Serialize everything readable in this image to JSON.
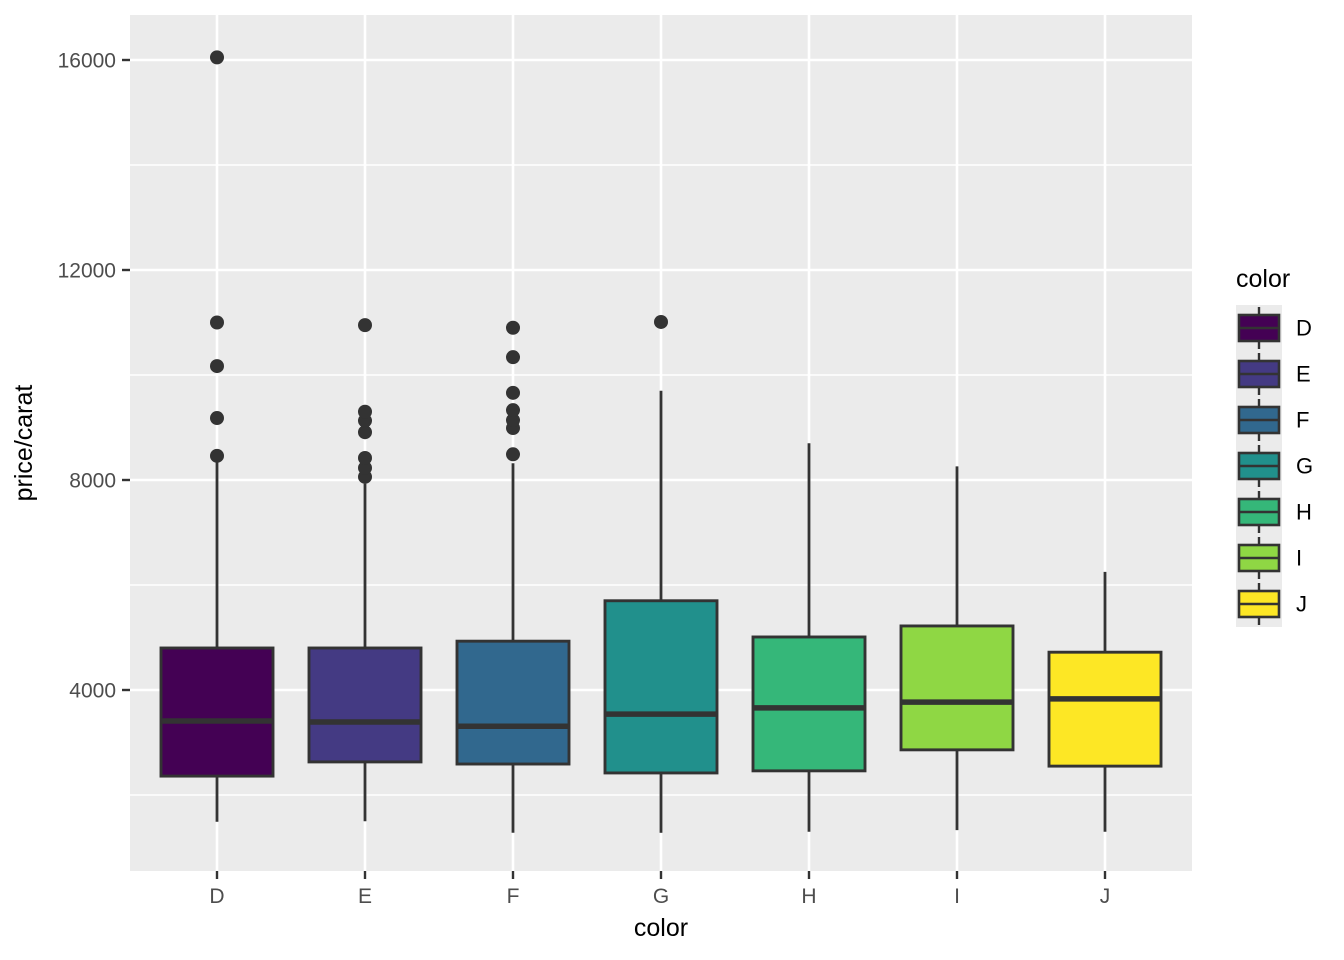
{
  "chart_data": {
    "type": "boxplot",
    "title": "",
    "xlabel": "color",
    "ylabel": "price/carat",
    "categories": [
      "D",
      "E",
      "F",
      "G",
      "H",
      "I",
      "J"
    ],
    "series": [
      {
        "name": "D",
        "color": "#440154",
        "whisker_low": 1490,
        "q1": 2360,
        "median": 3410,
        "q3": 4800,
        "whisker_high": 8380,
        "outliers": [
          8460,
          9180,
          10170,
          11000,
          16050
        ]
      },
      {
        "name": "E",
        "color": "#443A83",
        "whisker_low": 1500,
        "q1": 2630,
        "median": 3390,
        "q3": 4800,
        "whisker_high": 7930,
        "outliers": [
          8060,
          8230,
          8420,
          8910,
          9130,
          9300,
          10950
        ]
      },
      {
        "name": "F",
        "color": "#31688E",
        "whisker_low": 1280,
        "q1": 2590,
        "median": 3310,
        "q3": 4930,
        "whisker_high": 8320,
        "outliers": [
          8490,
          8990,
          9140,
          9330,
          9660,
          10340,
          10900
        ]
      },
      {
        "name": "G",
        "color": "#21908C",
        "whisker_low": 1280,
        "q1": 2420,
        "median": 3540,
        "q3": 5700,
        "whisker_high": 9700,
        "outliers": [
          11010
        ]
      },
      {
        "name": "H",
        "color": "#35B779",
        "whisker_low": 1300,
        "q1": 2460,
        "median": 3660,
        "q3": 5010,
        "whisker_high": 8700,
        "outliers": []
      },
      {
        "name": "I",
        "color": "#8FD744",
        "whisker_low": 1330,
        "q1": 2860,
        "median": 3770,
        "q3": 5220,
        "whisker_high": 8260,
        "outliers": []
      },
      {
        "name": "J",
        "color": "#FDE725",
        "whisker_low": 1300,
        "q1": 2550,
        "median": 3830,
        "q3": 4720,
        "whisker_high": 6250,
        "outliers": []
      }
    ],
    "y_axis": {
      "tick_labels": [
        "4000",
        "8000",
        "12000",
        "16000"
      ],
      "ticks": [
        4000,
        8000,
        12000,
        16000
      ],
      "minor_ticks": [
        2000,
        6000,
        10000,
        14000
      ],
      "range": [
        550,
        16860
      ],
      "grid": true
    },
    "legend": {
      "title": "color",
      "position": "right",
      "entries": [
        {
          "label": "D",
          "color": "#440154"
        },
        {
          "label": "E",
          "color": "#443A83"
        },
        {
          "label": "F",
          "color": "#31688E"
        },
        {
          "label": "G",
          "color": "#21908C"
        },
        {
          "label": "H",
          "color": "#35B779"
        },
        {
          "label": "I",
          "color": "#8FD744"
        },
        {
          "label": "J",
          "color": "#FDE725"
        }
      ]
    },
    "style": {
      "panel_bg": "#EBEBEB",
      "grid_color": "#FFFFFF",
      "box_border": "#333333",
      "outlier_color": "#333333",
      "tick_label_color": "#4D4D4D",
      "axis_title_color": "#000000",
      "legend_key_bg": "#EBEBEB"
    }
  }
}
